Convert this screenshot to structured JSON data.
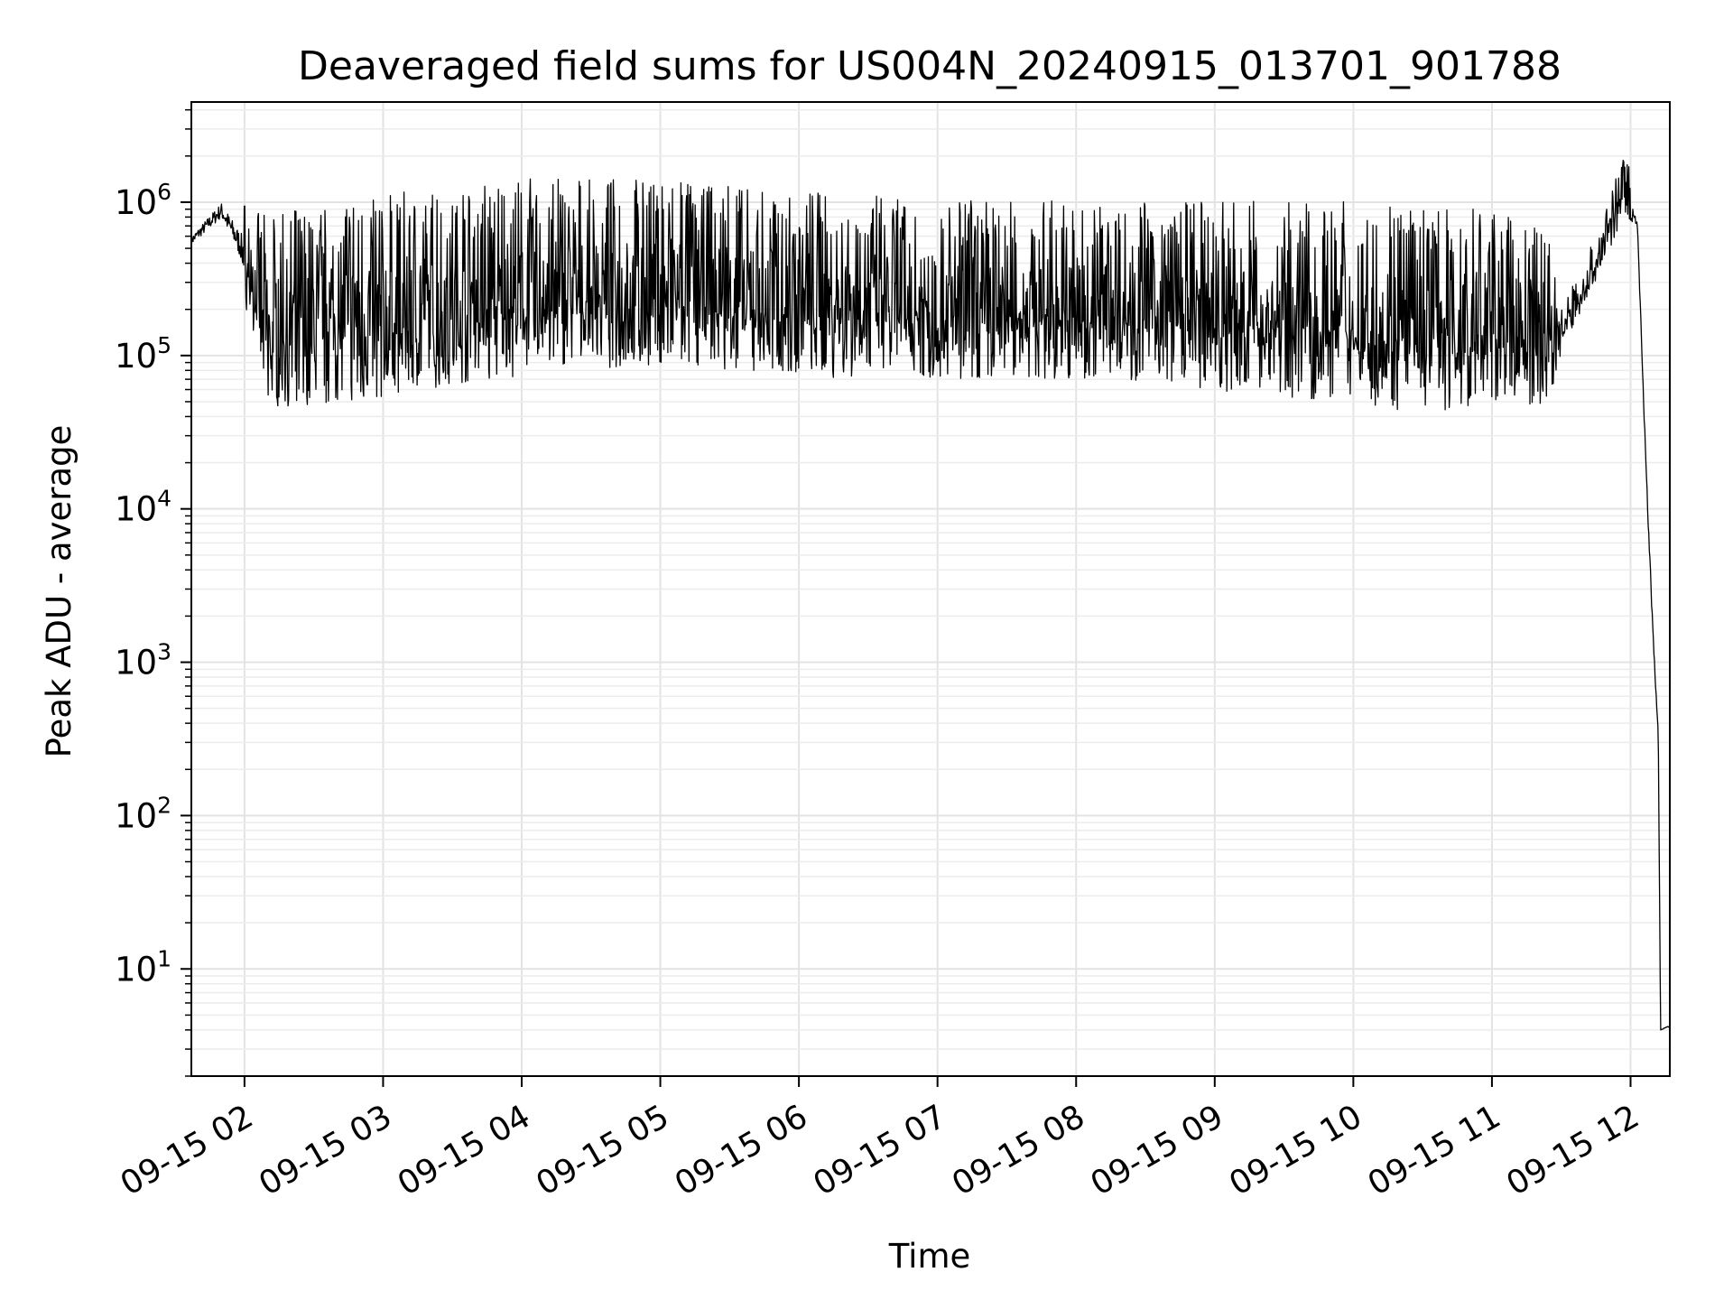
{
  "chart_data": {
    "type": "line",
    "title": "Deaveraged field sums for US004N_20240915_013701_901788",
    "xlabel": "Time",
    "ylabel": "Peak ADU - average",
    "yscale": "log",
    "xlim": [
      "2024-09-15 01:37",
      "2024-09-15 12:17"
    ],
    "ylim": [
      2,
      4500000
    ],
    "grid": true,
    "x_ticks": [
      "09-15 02",
      "09-15 03",
      "09-15 04",
      "09-15 05",
      "09-15 06",
      "09-15 07",
      "09-15 08",
      "09-15 09",
      "09-15 10",
      "09-15 11",
      "09-15 12"
    ],
    "y_ticks": [
      {
        "value": 10,
        "base": "10",
        "exp": "1"
      },
      {
        "value": 100,
        "base": "10",
        "exp": "2"
      },
      {
        "value": 1000,
        "base": "10",
        "exp": "3"
      },
      {
        "value": 10000,
        "base": "10",
        "exp": "4"
      },
      {
        "value": 100000,
        "base": "10",
        "exp": "5"
      },
      {
        "value": 1000000,
        "base": "10",
        "exp": "6"
      }
    ],
    "line_color": "#000000",
    "envelope": {
      "description_units": "time as 2024-09-15 HH:MM, values in ADU",
      "points": [
        {
          "t": "01:37",
          "low": 450000,
          "high": 700000
        },
        {
          "t": "01:50",
          "low": 600000,
          "high": 1300000
        },
        {
          "t": "01:59",
          "low": 250000,
          "high": 1000000
        },
        {
          "t": "02:10",
          "low": 40000,
          "high": 800000
        },
        {
          "t": "02:30",
          "low": 40000,
          "high": 950000
        },
        {
          "t": "03:00",
          "low": 45000,
          "high": 1150000
        },
        {
          "t": "03:30",
          "low": 55000,
          "high": 1200000
        },
        {
          "t": "04:00",
          "low": 60000,
          "high": 1450000
        },
        {
          "t": "04:30",
          "low": 70000,
          "high": 1400000
        },
        {
          "t": "05:00",
          "low": 75000,
          "high": 1450000
        },
        {
          "t": "05:30",
          "low": 70000,
          "high": 1300000
        },
        {
          "t": "06:00",
          "low": 62000,
          "high": 1200000
        },
        {
          "t": "06:30",
          "low": 62000,
          "high": 1100000
        },
        {
          "t": "07:00",
          "low": 60000,
          "high": 1100000
        },
        {
          "t": "07:30",
          "low": 62000,
          "high": 1000000
        },
        {
          "t": "08:00",
          "low": 60000,
          "high": 1050000
        },
        {
          "t": "08:30",
          "low": 60000,
          "high": 1000000
        },
        {
          "t": "09:00",
          "low": 50000,
          "high": 1000000
        },
        {
          "t": "09:30",
          "low": 45000,
          "high": 1050000
        },
        {
          "t": "10:00",
          "low": 42000,
          "high": 1000000
        },
        {
          "t": "10:30",
          "low": 35000,
          "high": 900000
        },
        {
          "t": "11:00",
          "low": 40000,
          "high": 900000
        },
        {
          "t": "11:25",
          "low": 42000,
          "high": 700000
        },
        {
          "t": "11:30",
          "low": 100000,
          "high": 200000
        },
        {
          "t": "11:45",
          "low": 300000,
          "high": 600000
        },
        {
          "t": "11:58",
          "low": 800000,
          "high": 2300000
        },
        {
          "t": "12:03",
          "low": 600000,
          "high": 800000
        },
        {
          "t": "12:07",
          "low": 10000,
          "high": 20000
        },
        {
          "t": "12:10",
          "low": 1000,
          "high": 1500
        },
        {
          "t": "12:12",
          "low": 300,
          "high": 400
        },
        {
          "t": "12:13",
          "low": 4,
          "high": 4
        },
        {
          "t": "12:17",
          "low": 4,
          "high": 4.5
        }
      ]
    }
  }
}
